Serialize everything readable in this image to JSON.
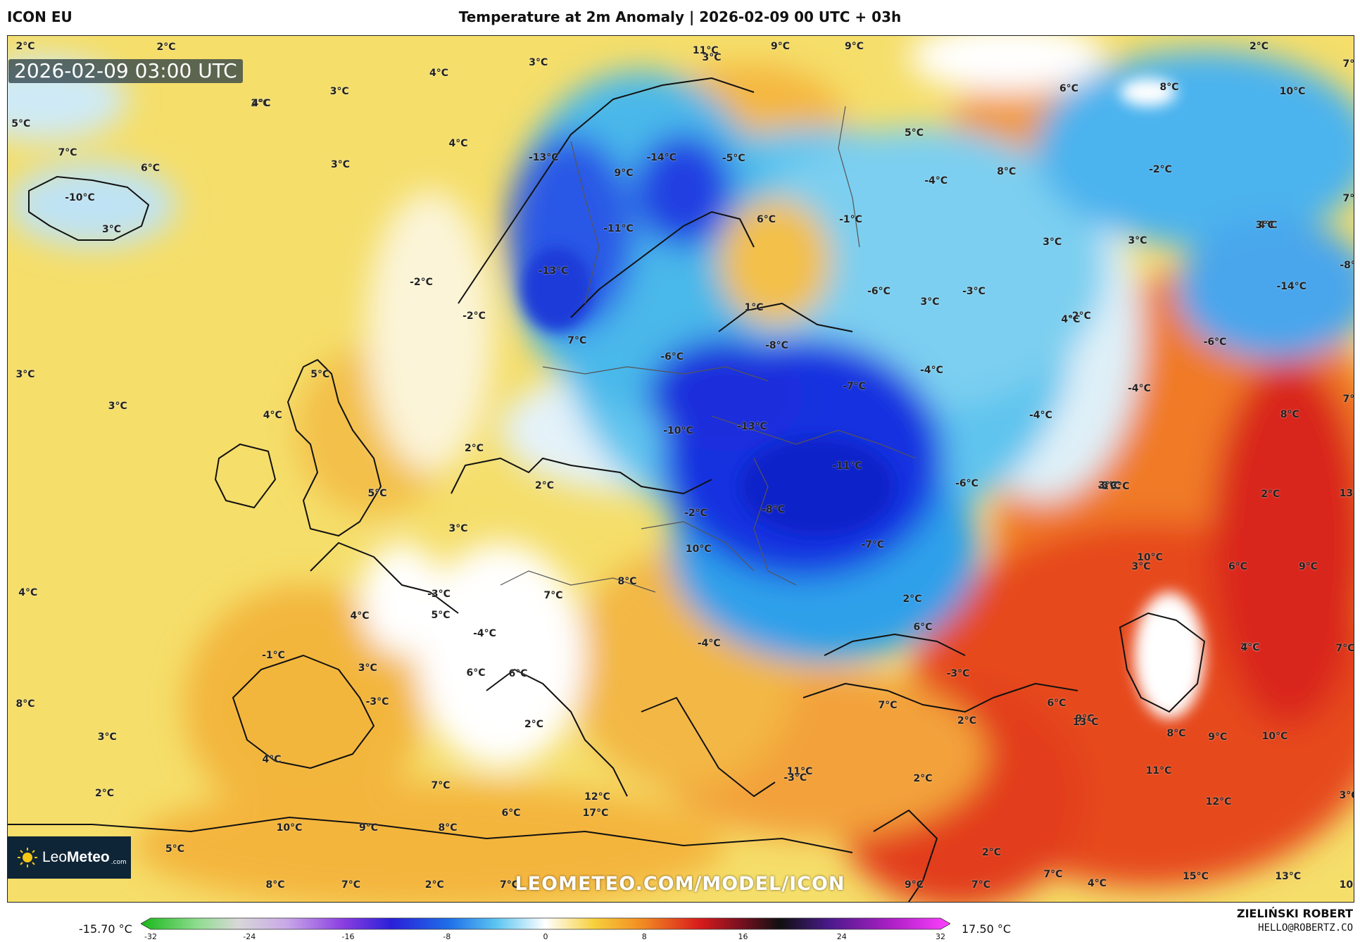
{
  "header": {
    "model": "ICON EU",
    "title": "Temperature at 2m Anomaly | 2026-02-09 00 UTC + 03h"
  },
  "map": {
    "timestamp": "2026-02-09 03:00 UTC",
    "watermark": "LEOMETEO.COM/MODEL/ICON",
    "logo": {
      "brand_light": "Leo",
      "brand_bold": "Meteo",
      "suffix": ".com"
    },
    "labels": [
      "2°C",
      "2°C",
      "3°C",
      "4°C",
      "3°C",
      "5°C",
      "11°C",
      "9°C",
      "9°C",
      "2°C",
      "8°C",
      "6°C",
      "7°C",
      "10°C",
      "7°C",
      "6°C",
      "-10°C",
      "3°C",
      "3°C",
      "4°C",
      "-13°C",
      "9°C",
      "-14°C",
      "-5°C",
      "5°C",
      "8°C",
      "-2°C",
      "3°C",
      "4°C",
      "3°C",
      "-11°C",
      "6°C",
      "-1°C",
      "-4°C",
      "3°C",
      "3°C",
      "7°C",
      "4°C",
      "3°C",
      "-2°C",
      "-13°C",
      "-2°C",
      "1°C",
      "-6°C",
      "-3°C",
      "-14°C",
      "-8°C",
      "-2°C",
      "3°C",
      "4°C",
      "7°C",
      "-6°C",
      "-8°C",
      "-6°C",
      "3°C",
      "5°C",
      "-4°C",
      "-7°C",
      "-4°C",
      "3°C",
      "4°C",
      "-13°C",
      "-10°C",
      "-4°C",
      "8°C",
      "7°C",
      "-2°C",
      "2°C",
      "3°C",
      "-11°C",
      "2°C",
      "5°C",
      "2°C",
      "3°C",
      "3°C",
      "4°C",
      "-2°C",
      "-6°C",
      "10°C",
      "13°C",
      "-8°C",
      "3°C",
      "5°C",
      "10°C",
      "6°C",
      "-7°C",
      "9°C",
      "4°C",
      "-3°C",
      "3°C",
      "2°C",
      "8°C",
      "7°C",
      "7°C",
      "5°C",
      "-4°C",
      "-4°C",
      "4°C",
      "6°C",
      "3°C",
      "6°C",
      "-3°C",
      "-1°C",
      "7°C",
      "9°C",
      "6°C",
      "8°C",
      "3°C",
      "-3°C",
      "2°C",
      "2°C",
      "6°C",
      "7°C",
      "2°C",
      "9°C",
      "13°C",
      "12°C",
      "8°C",
      "7°C",
      "10°C",
      "2°C",
      "4°C",
      "11°C",
      "11°C",
      "7°C",
      "6°C",
      "17°C",
      "5°C",
      "-3°C",
      "3°C",
      "2°C",
      "4°C",
      "12°C",
      "8°C",
      "7°C",
      "2°C",
      "7°C",
      "9°C",
      "7°C",
      "7°C",
      "15°C",
      "13°C",
      "10°C",
      "10°C",
      "9°C",
      "8°C"
    ]
  },
  "colorbar": {
    "min_label": "-15.70 °C",
    "max_label": "17.50 °C",
    "range": [
      -32,
      32
    ],
    "ticks": [
      "-32",
      "-24",
      "-16",
      "-8",
      "0",
      "8",
      "16",
      "24",
      "32"
    ]
  },
  "author": {
    "name": "ZIELIŃSKI ROBERT",
    "email": "HELLO@ROBERTZ.CO"
  }
}
